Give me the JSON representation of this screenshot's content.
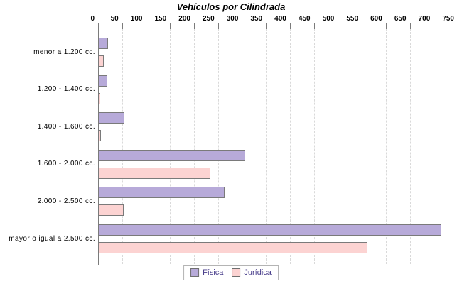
{
  "title": "Vehículos por Cilindrada",
  "chart_data": {
    "type": "bar",
    "orientation": "horizontal",
    "title": "Vehículos por Cilindrada",
    "categories": [
      "menor a 1.200 cc.",
      "1.200 - 1.400 cc.",
      "1.400 - 1.600 cc.",
      "1.600 - 2.000 cc.",
      "2.000 - 2.500 cc.",
      "mayor o igual a 2.500 cc."
    ],
    "series": [
      {
        "name": "Física",
        "color": "#b7aad9",
        "values": [
          20,
          18,
          54,
          305,
          262,
          715
        ]
      },
      {
        "name": "Jurídica",
        "color": "#fcd3d2",
        "values": [
          10,
          3,
          5,
          233,
          52,
          560
        ]
      }
    ],
    "x_axis": {
      "min": 0,
      "max": 750,
      "tick_interval": 50,
      "tick_labels": [
        "0",
        "50",
        "100",
        "150",
        "200",
        "250",
        "300",
        "350",
        "400",
        "450",
        "500",
        "550",
        "600",
        "650",
        "700",
        "750"
      ]
    },
    "grid": true,
    "legend_position": "bottom"
  },
  "colors": {
    "axis": "#7b7b7b",
    "grid": "#d9d9d9",
    "bar_border": "#7a7a7a",
    "legend_text": "#483d8b",
    "legend_border": "#b4b4b4",
    "title_text": "#000000"
  }
}
